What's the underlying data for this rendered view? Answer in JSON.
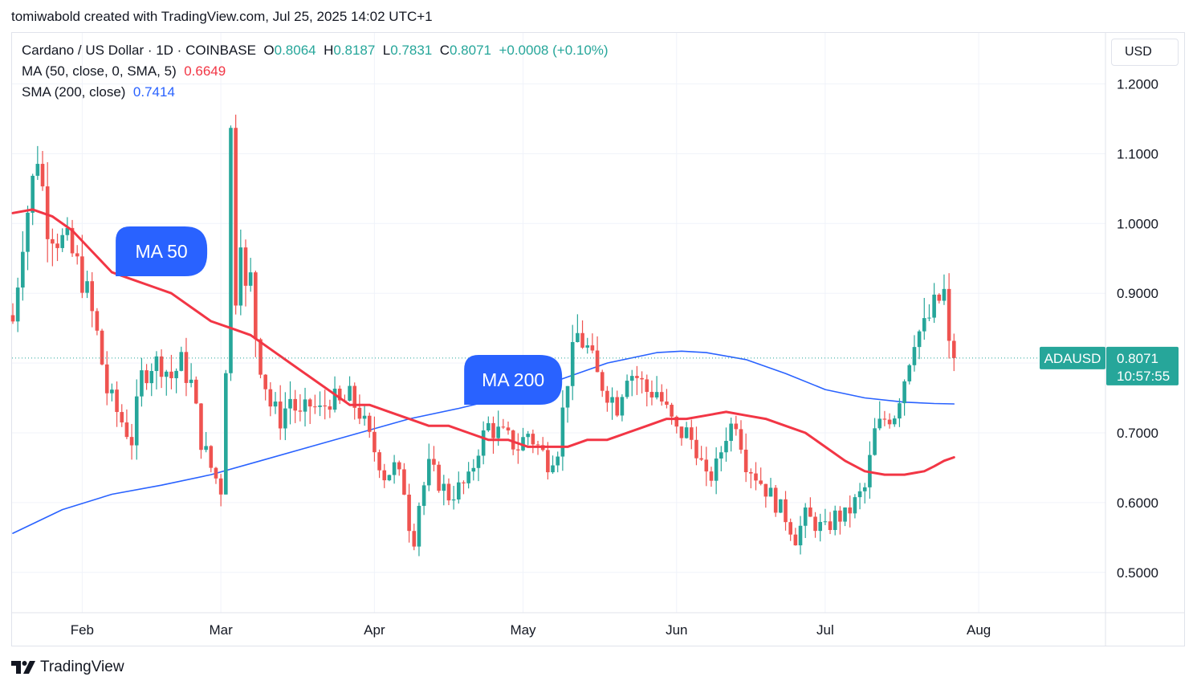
{
  "caption": "tomiwabold created with TradingView.com, Jul 25, 2025 14:02 UTC+1",
  "legend": {
    "symbol": "Cardano / US Dollar · 1D · COINBASE",
    "o_label": "O",
    "o_value": "0.8064",
    "h_label": "H",
    "h_value": "0.8187",
    "l_label": "L",
    "l_value": "0.7831",
    "c_label": "C",
    "c_value": "0.8071",
    "change": "+0.0008 (+0.10%)",
    "ma_label": "MA (50, close, 0, SMA, 5)",
    "ma_value": "0.6649",
    "sma_label": "SMA (200, close)",
    "sma_value": "0.7414"
  },
  "currency_button": "USD",
  "footer_brand": "TradingView",
  "colors": {
    "up": "#26a69a",
    "down": "#ef5350",
    "ma50": "#f23645",
    "sma200": "#2962ff",
    "callout": "#2962ff",
    "grid": "#f0f3fa"
  },
  "chart_data": {
    "type": "candlestick",
    "symbol": "ADAUSD",
    "last_price": "0.8071",
    "countdown": "10:57:55",
    "ylim": [
      0.445,
      1.245
    ],
    "y_ticks": [
      "1.2000",
      "1.1000",
      "1.0000",
      "0.9000",
      "0.8000",
      "0.7000",
      "0.6000",
      "0.5000"
    ],
    "x_ticks": [
      {
        "label": "Feb",
        "day": 14
      },
      {
        "label": "Mar",
        "day": 42
      },
      {
        "label": "Apr",
        "day": 73
      },
      {
        "label": "May",
        "day": 103
      },
      {
        "label": "Jun",
        "day": 134
      },
      {
        "label": "Jul",
        "day": 164
      },
      {
        "label": "Aug",
        "day": 195
      }
    ],
    "first_day": "2025-01-01",
    "annotations": [
      {
        "text": "MA 50",
        "day": 30,
        "price": 0.96
      },
      {
        "text": "MA 200",
        "day": 101,
        "price": 0.776
      }
    ],
    "price_path": [
      [
        0,
        0.86
      ],
      [
        2,
        0.98
      ],
      [
        4,
        1.06
      ],
      [
        5,
        1.1
      ],
      [
        6,
        1.05
      ],
      [
        7,
        1.0
      ],
      [
        9,
        0.98
      ],
      [
        11,
        0.97
      ],
      [
        13,
        0.94
      ],
      [
        15,
        0.9
      ],
      [
        17,
        0.84
      ],
      [
        19,
        0.76
      ],
      [
        21,
        0.73
      ],
      [
        24,
        0.69
      ],
      [
        26,
        0.78
      ],
      [
        28,
        0.8
      ],
      [
        30,
        0.8
      ],
      [
        32,
        0.78
      ],
      [
        34,
        0.8
      ],
      [
        36,
        0.77
      ],
      [
        38,
        0.69
      ],
      [
        40,
        0.65
      ],
      [
        42,
        0.62
      ],
      [
        43,
        0.8
      ],
      [
        44,
        1.13
      ],
      [
        45,
        0.9
      ],
      [
        46,
        0.99
      ],
      [
        47,
        0.9
      ],
      [
        48,
        0.92
      ],
      [
        49,
        0.84
      ],
      [
        50,
        0.8
      ],
      [
        52,
        0.74
      ],
      [
        54,
        0.72
      ],
      [
        56,
        0.75
      ],
      [
        58,
        0.72
      ],
      [
        60,
        0.74
      ],
      [
        62,
        0.73
      ],
      [
        64,
        0.75
      ],
      [
        66,
        0.74
      ],
      [
        68,
        0.75
      ],
      [
        70,
        0.73
      ],
      [
        72,
        0.69
      ],
      [
        74,
        0.66
      ],
      [
        75,
        0.64
      ],
      [
        77,
        0.65
      ],
      [
        79,
        0.62
      ],
      [
        80,
        0.57
      ],
      [
        81,
        0.55
      ],
      [
        82,
        0.6
      ],
      [
        84,
        0.65
      ],
      [
        86,
        0.63
      ],
      [
        88,
        0.61
      ],
      [
        90,
        0.62
      ],
      [
        92,
        0.63
      ],
      [
        94,
        0.68
      ],
      [
        96,
        0.71
      ],
      [
        98,
        0.7
      ],
      [
        100,
        0.69
      ],
      [
        102,
        0.68
      ],
      [
        104,
        0.7
      ],
      [
        106,
        0.68
      ],
      [
        108,
        0.66
      ],
      [
        110,
        0.68
      ],
      [
        112,
        0.78
      ],
      [
        114,
        0.84
      ],
      [
        116,
        0.82
      ],
      [
        118,
        0.78
      ],
      [
        120,
        0.76
      ],
      [
        122,
        0.74
      ],
      [
        124,
        0.79
      ],
      [
        126,
        0.78
      ],
      [
        128,
        0.76
      ],
      [
        130,
        0.76
      ],
      [
        132,
        0.73
      ],
      [
        134,
        0.7
      ],
      [
        136,
        0.7
      ],
      [
        138,
        0.68
      ],
      [
        140,
        0.63
      ],
      [
        142,
        0.65
      ],
      [
        144,
        0.7
      ],
      [
        146,
        0.72
      ],
      [
        148,
        0.66
      ],
      [
        150,
        0.64
      ],
      [
        152,
        0.62
      ],
      [
        154,
        0.6
      ],
      [
        156,
        0.58
      ],
      [
        158,
        0.55
      ],
      [
        160,
        0.58
      ],
      [
        162,
        0.57
      ],
      [
        164,
        0.56
      ],
      [
        166,
        0.58
      ],
      [
        168,
        0.58
      ],
      [
        170,
        0.6
      ],
      [
        172,
        0.62
      ],
      [
        174,
        0.7
      ],
      [
        176,
        0.72
      ],
      [
        178,
        0.73
      ],
      [
        180,
        0.78
      ],
      [
        182,
        0.84
      ],
      [
        184,
        0.85
      ],
      [
        186,
        0.88
      ],
      [
        188,
        0.9
      ],
      [
        189,
        0.82
      ],
      [
        190,
        0.8071
      ]
    ],
    "ma50": [
      [
        0,
        1.015
      ],
      [
        4,
        1.02
      ],
      [
        8,
        1.01
      ],
      [
        12,
        0.99
      ],
      [
        16,
        0.96
      ],
      [
        20,
        0.93
      ],
      [
        24,
        0.92
      ],
      [
        28,
        0.91
      ],
      [
        32,
        0.9
      ],
      [
        36,
        0.88
      ],
      [
        40,
        0.86
      ],
      [
        44,
        0.85
      ],
      [
        48,
        0.84
      ],
      [
        52,
        0.82
      ],
      [
        56,
        0.8
      ],
      [
        60,
        0.78
      ],
      [
        64,
        0.76
      ],
      [
        68,
        0.74
      ],
      [
        72,
        0.74
      ],
      [
        76,
        0.73
      ],
      [
        80,
        0.72
      ],
      [
        84,
        0.71
      ],
      [
        88,
        0.71
      ],
      [
        92,
        0.7
      ],
      [
        96,
        0.69
      ],
      [
        100,
        0.69
      ],
      [
        104,
        0.68
      ],
      [
        108,
        0.68
      ],
      [
        112,
        0.68
      ],
      [
        116,
        0.69
      ],
      [
        120,
        0.69
      ],
      [
        124,
        0.7
      ],
      [
        128,
        0.71
      ],
      [
        132,
        0.72
      ],
      [
        136,
        0.72
      ],
      [
        140,
        0.725
      ],
      [
        144,
        0.73
      ],
      [
        148,
        0.725
      ],
      [
        152,
        0.72
      ],
      [
        156,
        0.71
      ],
      [
        160,
        0.7
      ],
      [
        164,
        0.68
      ],
      [
        168,
        0.66
      ],
      [
        172,
        0.645
      ],
      [
        176,
        0.64
      ],
      [
        180,
        0.64
      ],
      [
        184,
        0.645
      ],
      [
        186,
        0.652
      ],
      [
        188,
        0.66
      ],
      [
        190,
        0.6649
      ]
    ],
    "sma200": [
      [
        0,
        0.556
      ],
      [
        10,
        0.59
      ],
      [
        20,
        0.612
      ],
      [
        30,
        0.625
      ],
      [
        40,
        0.64
      ],
      [
        50,
        0.66
      ],
      [
        60,
        0.68
      ],
      [
        70,
        0.7
      ],
      [
        80,
        0.72
      ],
      [
        90,
        0.735
      ],
      [
        100,
        0.752
      ],
      [
        110,
        0.775
      ],
      [
        120,
        0.8
      ],
      [
        130,
        0.815
      ],
      [
        135,
        0.817
      ],
      [
        140,
        0.815
      ],
      [
        148,
        0.805
      ],
      [
        156,
        0.785
      ],
      [
        164,
        0.762
      ],
      [
        172,
        0.75
      ],
      [
        180,
        0.744
      ],
      [
        186,
        0.742
      ],
      [
        190,
        0.7414
      ]
    ]
  }
}
